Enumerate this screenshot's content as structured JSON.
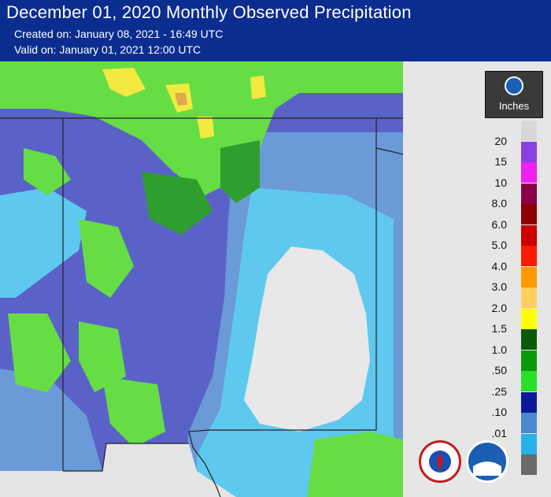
{
  "header": {
    "title": "December 01, 2020 Monthly Observed Precipitation",
    "created": "Created on: January 08, 2021 - 16:49 UTC",
    "valid": "Valid on: January 01, 2021 12:00 UTC"
  },
  "legend": {
    "units": "Inches",
    "logo_icon": "noaa-logo-icon",
    "levels": [
      {
        "label": "20",
        "color": "#d8d8d8"
      },
      {
        "label": "15",
        "color": "#8a3fe0"
      },
      {
        "label": "10",
        "color": "#f020f0"
      },
      {
        "label": "8.0",
        "color": "#8a0048"
      },
      {
        "label": "6.0",
        "color": "#8b0000"
      },
      {
        "label": "5.0",
        "color": "#cc0000"
      },
      {
        "label": "4.0",
        "color": "#ff1a00"
      },
      {
        "label": "3.0",
        "color": "#ff9a00"
      },
      {
        "label": "2.0",
        "color": "#ffd060"
      },
      {
        "label": "1.5",
        "color": "#ffff00"
      },
      {
        "label": "1.0",
        "color": "#0a5a0a"
      },
      {
        "label": ".50",
        "color": "#0a9a0a"
      },
      {
        "label": ".25",
        "color": "#28e028"
      },
      {
        "label": ".10",
        "color": "#0a1a9a"
      },
      {
        "label": ".01",
        "color": "#4a8ad0"
      },
      {
        "label": "",
        "color": "#2ab0e8"
      },
      {
        "label": "",
        "color": "#6a6a6a"
      }
    ]
  },
  "logos": {
    "nws_icon": "national-weather-service-seal-icon",
    "noaa_icon": "noaa-seal-icon"
  },
  "map_colors": {
    "base": "#5a62c8",
    "light_blue": "#5fc8ee",
    "mid_blue": "#6a9ad8",
    "white": "#e8e8e8",
    "green": "#66dd44",
    "dark_green": "#2e9e2e",
    "yellow": "#f2ea40",
    "orange": "#e0a850",
    "border": "#222222"
  }
}
